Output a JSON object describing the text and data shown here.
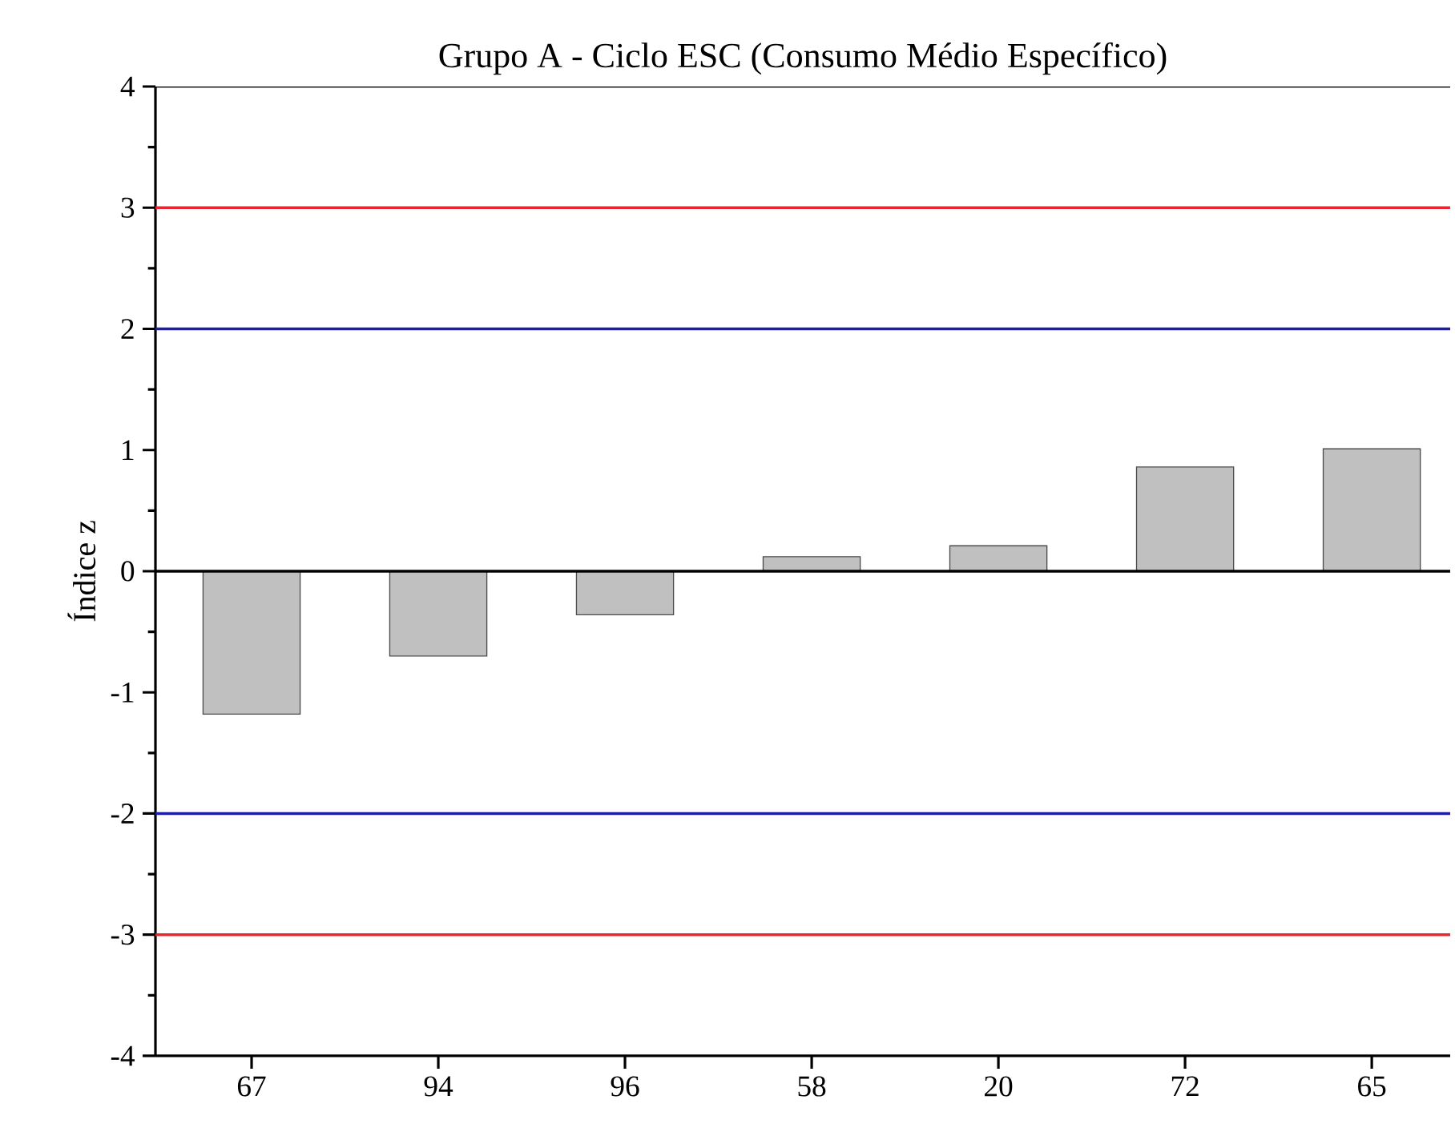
{
  "chart_data": {
    "type": "bar",
    "title": "Grupo A - Ciclo ESC (Consumo Médio Específico)",
    "ylabel": "Índice z",
    "categories": [
      "67",
      "94",
      "96",
      "58",
      "20",
      "72",
      "65"
    ],
    "values": [
      -1.18,
      -0.7,
      -0.36,
      0.12,
      0.21,
      0.86,
      1.01
    ],
    "color": "#c0c0c0",
    "ylim": [
      -4,
      4
    ],
    "yticks": [
      -4,
      -3,
      -2,
      -1,
      0,
      1,
      2,
      3,
      4
    ],
    "ref_lines": [
      {
        "axis": "y",
        "value": 3,
        "color": "#e8262c"
      },
      {
        "axis": "y",
        "value": 2,
        "color": "#1c1ca8"
      },
      {
        "axis": "y",
        "value": 0,
        "color": "#000000"
      },
      {
        "axis": "y",
        "value": -2,
        "color": "#1c1ca8"
      },
      {
        "axis": "y",
        "value": -3,
        "color": "#e8262c"
      }
    ],
    "grid": false
  }
}
